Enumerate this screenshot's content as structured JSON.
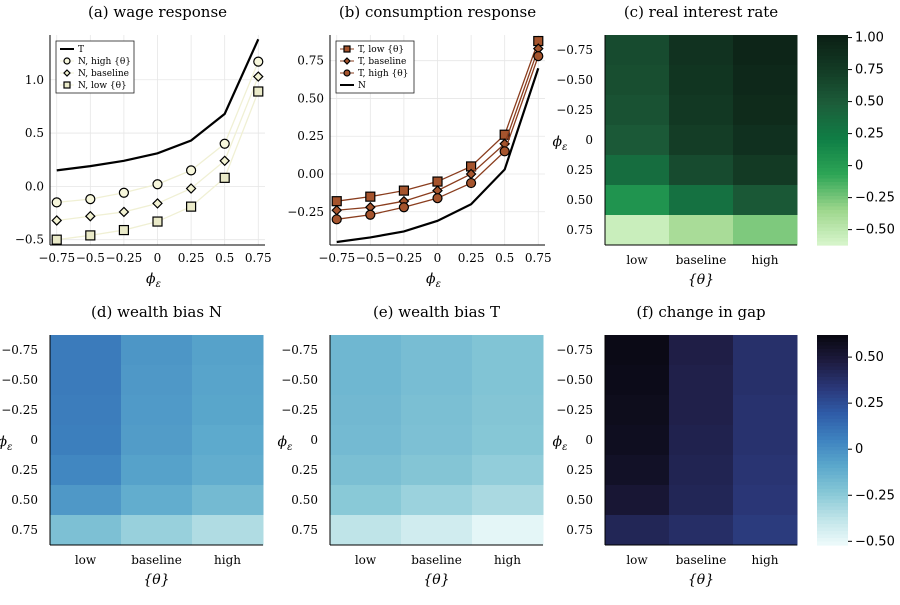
{
  "chart_data": [
    {
      "id": "a",
      "type": "line",
      "title": "(a) wage response",
      "xlabel": "ϕ_ε",
      "xlabel_main": "ϕ",
      "xlabel_sub": "ε",
      "x": [
        -0.75,
        -0.5,
        -0.25,
        0,
        0.25,
        0.5,
        0.75
      ],
      "xticks": [
        "−0.75",
        "−0.5",
        "−0.25",
        "0",
        "0.25",
        "0.5",
        "0.75"
      ],
      "xlim": [
        -0.8,
        0.8
      ],
      "ylim": [
        -0.55,
        1.42
      ],
      "yticks": [
        -0.5,
        0,
        0.5,
        1
      ],
      "ytick_labels": [
        "−0.5",
        "0.0",
        "0.5",
        "1.0"
      ],
      "grid": true,
      "legend": "top-left",
      "series": [
        {
          "name": "T",
          "marker": "none",
          "line": "#000000",
          "values": [
            0.15,
            0.19,
            0.24,
            0.31,
            0.43,
            0.68,
            1.38
          ]
        },
        {
          "name": "N, high {θ}",
          "marker": "circle",
          "line": "#f0f0d4",
          "fill": "#f7f7dc",
          "values": [
            -0.15,
            -0.12,
            -0.06,
            0.02,
            0.15,
            0.4,
            1.17
          ]
        },
        {
          "name": "N, baseline",
          "marker": "diamond",
          "line": "#f0f0d4",
          "fill": "#f2f2d2",
          "values": [
            -0.32,
            -0.28,
            -0.24,
            -0.16,
            -0.02,
            0.24,
            1.03
          ]
        },
        {
          "name": "N, low {θ}",
          "marker": "square",
          "line": "#f0f0d4",
          "fill": "#eaeac8",
          "values": [
            -0.5,
            -0.46,
            -0.41,
            -0.33,
            -0.19,
            0.08,
            0.89
          ]
        }
      ]
    },
    {
      "id": "b",
      "type": "line",
      "title": "(b) consumption response",
      "xlabel": "ϕ_ε",
      "xlabel_main": "ϕ",
      "xlabel_sub": "ε",
      "x": [
        -0.75,
        -0.5,
        -0.25,
        0,
        0.25,
        0.5,
        0.75
      ],
      "xticks": [
        "−0.75",
        "−0.5",
        "−0.25",
        "0",
        "0.25",
        "0.5",
        "0.75"
      ],
      "xlim": [
        -0.8,
        0.8
      ],
      "ylim": [
        -0.47,
        0.92
      ],
      "yticks": [
        -0.25,
        0,
        0.25,
        0.5,
        0.75
      ],
      "ytick_labels": [
        "−0.25",
        "0.00",
        "0.25",
        "0.50",
        "0.75"
      ],
      "grid": true,
      "legend": "top-left",
      "series": [
        {
          "name": "T, low {θ}",
          "marker": "square",
          "line": "#8a3d1e",
          "fill": "#a5542d",
          "values": [
            -0.18,
            -0.15,
            -0.11,
            -0.05,
            0.05,
            0.26,
            0.88
          ]
        },
        {
          "name": "T, baseline",
          "marker": "diamond",
          "line": "#8a3d1e",
          "fill": "#a5542d",
          "values": [
            -0.24,
            -0.22,
            -0.18,
            -0.11,
            0.0,
            0.2,
            0.83
          ]
        },
        {
          "name": "T, high {θ}",
          "marker": "circle",
          "line": "#8a3d1e",
          "fill": "#a5542d",
          "values": [
            -0.3,
            -0.27,
            -0.22,
            -0.16,
            -0.06,
            0.15,
            0.78
          ]
        },
        {
          "name": "N",
          "marker": "none",
          "line": "#000000",
          "values": [
            -0.45,
            -0.42,
            -0.38,
            -0.31,
            -0.2,
            0.03,
            0.7
          ]
        }
      ]
    },
    {
      "id": "c",
      "type": "heatmap",
      "title": "(c) real interest rate",
      "xlabel": "{θ}",
      "ylabel": "ϕ_ε",
      "ylabel_main": "ϕ",
      "ylabel_sub": "ε",
      "categories": [
        "low",
        "baseline",
        "high"
      ],
      "rows": [
        "−0.75",
        "−0.50",
        "−0.25",
        "0",
        "0.25",
        "0.50",
        "0.75"
      ],
      "colorscale": [
        "#d8f6cc",
        "#9dd68c",
        "#2ea656",
        "#0f7f46",
        "#1c5e3a",
        "#133b25",
        "#0b1f14"
      ],
      "clim": [
        -0.62,
        1.02
      ],
      "cbticks": [
        1,
        0.75,
        0.5,
        0.25,
        0,
        -0.25,
        -0.5
      ],
      "cbtick_labels": [
        "1.00",
        "0.75",
        "0.50",
        "0.25",
        "0",
        "−0.25",
        "−0.50"
      ],
      "values": [
        [
          0.62,
          0.83,
          0.96
        ],
        [
          0.6,
          0.81,
          0.93
        ],
        [
          0.57,
          0.78,
          0.9
        ],
        [
          0.51,
          0.73,
          0.85
        ],
        [
          0.35,
          0.62,
          0.76
        ],
        [
          0.05,
          0.32,
          0.52
        ],
        [
          -0.55,
          -0.4,
          -0.27
        ]
      ]
    },
    {
      "id": "d",
      "type": "heatmap",
      "title": "(d) wealth bias N",
      "xlabel": "{θ}",
      "ylabel": "ϕ_ε",
      "ylabel_main": "ϕ",
      "ylabel_sub": "ε",
      "categories": [
        "low",
        "baseline",
        "high"
      ],
      "rows": [
        "−0.75",
        "−0.50",
        "−0.25",
        "0",
        "0.25",
        "0.50",
        "0.75"
      ],
      "colorscale": [
        "#eefbfb",
        "#bfe4e8",
        "#86c7d6",
        "#5ba8cc",
        "#3e83c0",
        "#2f5ca8",
        "#2a3778"
      ],
      "clim": [
        -0.52,
        0.62
      ],
      "values": [
        [
          0.28,
          0.14,
          0.08
        ],
        [
          0.28,
          0.13,
          0.07
        ],
        [
          0.27,
          0.12,
          0.06
        ],
        [
          0.26,
          0.11,
          0.04
        ],
        [
          0.22,
          0.08,
          0.02
        ],
        [
          0.13,
          0.02,
          -0.06
        ],
        [
          -0.1,
          -0.2,
          -0.28
        ]
      ]
    },
    {
      "id": "e",
      "type": "heatmap",
      "title": "(e) wealth bias T",
      "xlabel": "{θ}",
      "ylabel": "ϕ_ε",
      "ylabel_main": "ϕ",
      "ylabel_sub": "ε",
      "categories": [
        "low",
        "baseline",
        "high"
      ],
      "rows": [
        "−0.75",
        "−0.50",
        "−0.25",
        "0",
        "0.25",
        "0.50",
        "0.75"
      ],
      "colorscale": [
        "#eefbfb",
        "#bfe4e8",
        "#86c7d6",
        "#5ba8cc",
        "#3e83c0",
        "#2f5ca8",
        "#2a3778"
      ],
      "clim": [
        -0.52,
        0.62
      ],
      "values": [
        [
          -0.04,
          -0.08,
          -0.12
        ],
        [
          -0.04,
          -0.08,
          -0.12
        ],
        [
          -0.05,
          -0.09,
          -0.13
        ],
        [
          -0.06,
          -0.1,
          -0.14
        ],
        [
          -0.09,
          -0.13,
          -0.18
        ],
        [
          -0.15,
          -0.21,
          -0.26
        ],
        [
          -0.33,
          -0.4,
          -0.48
        ]
      ]
    },
    {
      "id": "f",
      "type": "heatmap",
      "title": "(f) change in gap",
      "xlabel": "{θ}",
      "ylabel": "ϕ_ε",
      "ylabel_main": "ϕ",
      "ylabel_sub": "ε",
      "categories": [
        "low",
        "baseline",
        "high"
      ],
      "rows": [
        "−0.75",
        "−0.50",
        "−0.25",
        "0",
        "0.25",
        "0.50",
        "0.75"
      ],
      "colorscale": [
        "#eefbfb",
        "#bfe4e8",
        "#86c7d6",
        "#5ba8cc",
        "#3e83c0",
        "#2f5ca8",
        "#2a3778",
        "#1d1b3f",
        "#08070f"
      ],
      "clim": [
        -0.52,
        0.62
      ],
      "cbticks": [
        0.5,
        0.25,
        0,
        -0.25,
        -0.5
      ],
      "cbtick_labels": [
        "0.50",
        "0.25",
        "0",
        "−0.25",
        "−0.50"
      ],
      "values": [
        [
          0.6,
          0.46,
          0.37
        ],
        [
          0.59,
          0.45,
          0.37
        ],
        [
          0.58,
          0.45,
          0.36
        ],
        [
          0.57,
          0.44,
          0.36
        ],
        [
          0.55,
          0.43,
          0.35
        ],
        [
          0.51,
          0.42,
          0.34
        ],
        [
          0.42,
          0.38,
          0.32
        ]
      ]
    }
  ]
}
